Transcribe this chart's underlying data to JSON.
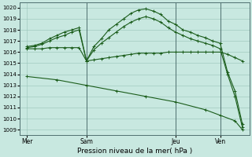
{
  "background_color": "#c8e8e0",
  "grid_color": "#98c4b8",
  "line_color": "#1a5c1a",
  "title": "Pression niveau de la mer( hPa )",
  "ylim": [
    1008.5,
    1020.5
  ],
  "yticks": [
    1009,
    1010,
    1011,
    1012,
    1013,
    1014,
    1015,
    1016,
    1017,
    1018,
    1019,
    1020
  ],
  "xtick_labels": [
    "Mer",
    "Sam",
    "Jeu",
    "Ven"
  ],
  "xtick_positions": [
    0,
    8,
    20,
    26
  ],
  "vlines": [
    8,
    20,
    26
  ],
  "xlim": [
    -1,
    30
  ],
  "series": [
    {
      "x": [
        0,
        1,
        2,
        3,
        4,
        5,
        6,
        7,
        8,
        9,
        10,
        11,
        12,
        13,
        14,
        15,
        16,
        17,
        18,
        19,
        20,
        21,
        22,
        23,
        24,
        25,
        26,
        27,
        28,
        29
      ],
      "y": [
        1016.3,
        1016.3,
        1016.3,
        1016.4,
        1016.4,
        1016.4,
        1016.4,
        1016.4,
        1015.2,
        1015.3,
        1015.4,
        1015.5,
        1015.6,
        1015.7,
        1015.8,
        1015.9,
        1015.9,
        1015.9,
        1015.9,
        1016.0,
        1016.0,
        1016.0,
        1016.0,
        1016.0,
        1016.0,
        1016.0,
        1016.0,
        1015.8,
        1015.5,
        1015.2
      ],
      "marker": "+"
    },
    {
      "x": [
        0,
        1,
        2,
        3,
        4,
        5,
        6,
        7,
        8,
        9,
        10,
        11,
        12,
        13,
        14,
        15,
        16,
        17,
        18,
        19,
        20,
        21,
        22,
        23,
        24,
        25,
        26,
        27,
        28,
        29
      ],
      "y": [
        1016.5,
        1016.6,
        1016.8,
        1017.2,
        1017.5,
        1017.8,
        1018.0,
        1018.2,
        1015.2,
        1016.5,
        1017.2,
        1018.0,
        1018.5,
        1019.0,
        1019.5,
        1019.8,
        1019.9,
        1019.7,
        1019.4,
        1018.8,
        1018.5,
        1018.0,
        1017.8,
        1017.5,
        1017.3,
        1017.0,
        1016.8,
        1014.2,
        1012.5,
        1009.5
      ],
      "marker": "+"
    },
    {
      "x": [
        0,
        1,
        2,
        3,
        4,
        5,
        6,
        7,
        8,
        9,
        10,
        11,
        12,
        13,
        14,
        15,
        16,
        17,
        18,
        19,
        20,
        21,
        22,
        23,
        24,
        25,
        26,
        27,
        28,
        29
      ],
      "y": [
        1016.4,
        1016.5,
        1016.7,
        1017.0,
        1017.3,
        1017.5,
        1017.8,
        1018.0,
        1015.2,
        1016.2,
        1016.8,
        1017.3,
        1017.8,
        1018.3,
        1018.7,
        1019.0,
        1019.2,
        1019.0,
        1018.7,
        1018.2,
        1017.8,
        1017.5,
        1017.2,
        1017.0,
        1016.8,
        1016.6,
        1016.3,
        1014.0,
        1012.0,
        1009.2
      ],
      "marker": "+"
    },
    {
      "x": [
        0,
        4,
        8,
        12,
        16,
        20,
        24,
        26,
        28,
        29
      ],
      "y": [
        1013.8,
        1013.5,
        1013.0,
        1012.5,
        1012.0,
        1011.5,
        1010.8,
        1010.3,
        1009.8,
        1009.0
      ],
      "marker": "+"
    }
  ]
}
